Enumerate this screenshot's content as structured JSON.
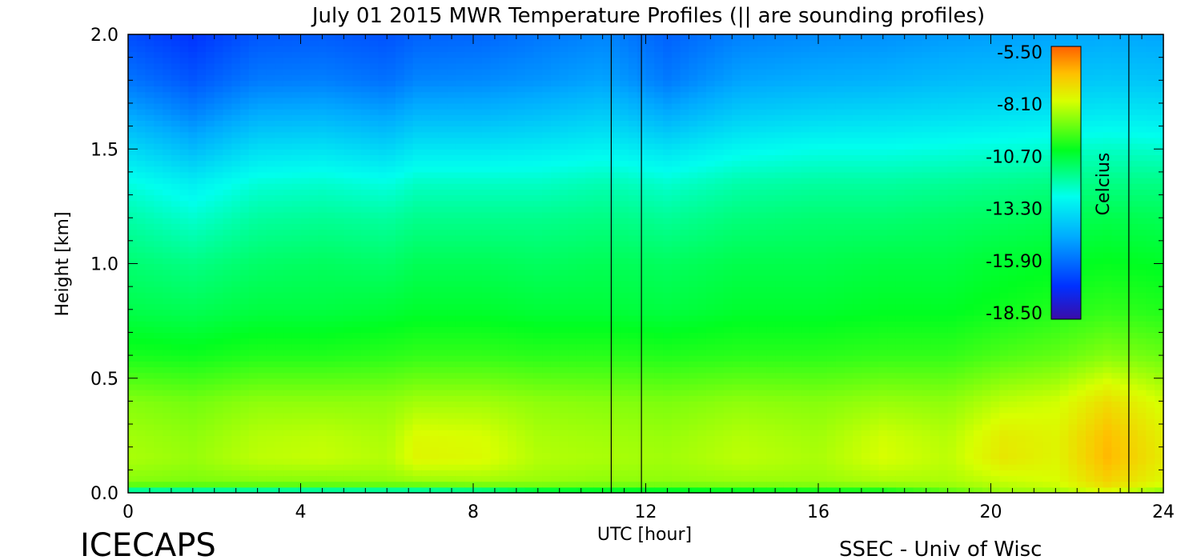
{
  "chart_data": {
    "type": "heatmap",
    "title": "July 01 2015 MWR Temperature Profiles (|| are sounding profiles)",
    "xlabel": "UTC [hour]",
    "ylabel": "Height [km]",
    "xlim": [
      0,
      24
    ],
    "ylim": [
      0,
      2.0
    ],
    "x_ticks": [
      "0",
      "4",
      "8",
      "12",
      "16",
      "20",
      "24"
    ],
    "y_ticks": [
      "0.0",
      "0.5",
      "1.0",
      "1.5",
      "2.0"
    ],
    "colorbar": {
      "label": "Celcius",
      "range": [
        -18.5,
        -5.5
      ],
      "ticks": [
        "-5.50",
        "-8.10",
        "-10.70",
        "-13.30",
        "-15.90",
        "-18.50"
      ]
    },
    "sounding_profiles_utc": [
      11.2,
      11.9,
      23.2
    ],
    "profile_heights_km": [
      0.0,
      0.02,
      0.05,
      0.15,
      0.25,
      0.4,
      0.6,
      0.8,
      1.0,
      1.2,
      1.35,
      1.5,
      1.65,
      1.8,
      2.0
    ],
    "temperature_profiles_c": [
      {
        "utc": 0.0,
        "temps": [
          -14.5,
          -10.0,
          -9.0,
          -8.6,
          -8.7,
          -9.0,
          -10.2,
          -10.9,
          -11.3,
          -11.9,
          -12.5,
          -13.5,
          -14.6,
          -15.6,
          -16.4
        ]
      },
      {
        "utc": 1.5,
        "temps": [
          -14.5,
          -10.0,
          -9.1,
          -8.8,
          -8.9,
          -9.2,
          -10.3,
          -11.0,
          -11.5,
          -12.3,
          -13.0,
          -14.2,
          -15.3,
          -16.2,
          -16.9
        ]
      },
      {
        "utc": 3.0,
        "temps": [
          -14.5,
          -10.0,
          -9.0,
          -8.4,
          -8.5,
          -8.9,
          -10.1,
          -10.8,
          -11.2,
          -11.8,
          -12.4,
          -13.4,
          -14.5,
          -15.5,
          -16.2
        ]
      },
      {
        "utc": 4.5,
        "temps": [
          -14.5,
          -10.0,
          -9.0,
          -8.3,
          -8.4,
          -8.9,
          -10.1,
          -10.8,
          -11.1,
          -11.7,
          -12.3,
          -13.3,
          -14.4,
          -15.4,
          -16.1
        ]
      },
      {
        "utc": 6.0,
        "temps": [
          -14.5,
          -10.0,
          -8.9,
          -8.5,
          -8.6,
          -8.9,
          -10.0,
          -10.7,
          -11.2,
          -11.8,
          -12.5,
          -13.6,
          -14.7,
          -15.7,
          -16.3
        ]
      },
      {
        "utc": 6.7,
        "temps": [
          -14.5,
          -10.0,
          -8.8,
          -7.9,
          -8.0,
          -8.7,
          -9.9,
          -10.6,
          -11.0,
          -11.6,
          -12.2,
          -13.2,
          -14.3,
          -15.3,
          -16.0
        ]
      },
      {
        "utc": 8.2,
        "temps": [
          -14.0,
          -9.8,
          -8.7,
          -8.0,
          -8.1,
          -8.7,
          -9.9,
          -10.6,
          -11.0,
          -11.6,
          -12.2,
          -13.2,
          -14.3,
          -15.2,
          -15.9
        ]
      },
      {
        "utc": 9.5,
        "temps": [
          -12.5,
          -9.6,
          -8.8,
          -8.5,
          -8.6,
          -8.9,
          -10.0,
          -10.7,
          -11.1,
          -11.6,
          -12.2,
          -13.1,
          -14.1,
          -15.0,
          -15.6
        ]
      },
      {
        "utc": 11.0,
        "temps": [
          -12.0,
          -9.6,
          -8.9,
          -8.6,
          -8.7,
          -9.0,
          -10.0,
          -10.7,
          -11.0,
          -11.5,
          -12.0,
          -12.9,
          -13.8,
          -14.7,
          -15.3
        ]
      },
      {
        "utc": 12.5,
        "temps": [
          -12.0,
          -9.6,
          -8.9,
          -8.7,
          -8.8,
          -9.1,
          -10.1,
          -10.8,
          -11.1,
          -11.7,
          -12.3,
          -13.3,
          -14.5,
          -15.5,
          -16.0
        ]
      },
      {
        "utc": 14.2,
        "temps": [
          -11.8,
          -9.5,
          -8.8,
          -8.4,
          -8.5,
          -8.9,
          -10.0,
          -10.6,
          -10.9,
          -11.4,
          -11.9,
          -12.8,
          -13.8,
          -14.7,
          -15.4
        ]
      },
      {
        "utc": 16.0,
        "temps": [
          -11.5,
          -9.4,
          -8.8,
          -8.6,
          -8.7,
          -9.0,
          -10.0,
          -10.6,
          -10.9,
          -11.3,
          -11.8,
          -12.6,
          -13.6,
          -14.5,
          -15.2
        ]
      },
      {
        "utc": 17.5,
        "temps": [
          -11.5,
          -9.3,
          -8.6,
          -8.1,
          -8.2,
          -8.8,
          -9.9,
          -10.5,
          -10.8,
          -11.3,
          -11.8,
          -12.6,
          -13.5,
          -14.4,
          -15.1
        ]
      },
      {
        "utc": 19.0,
        "temps": [
          -10.0,
          -9.0,
          -8.6,
          -8.4,
          -8.5,
          -8.9,
          -9.9,
          -10.5,
          -10.8,
          -11.2,
          -11.7,
          -12.5,
          -13.4,
          -14.2,
          -14.9
        ]
      },
      {
        "utc": 20.3,
        "temps": [
          -9.0,
          -8.6,
          -8.3,
          -7.6,
          -7.7,
          -8.4,
          -9.6,
          -10.3,
          -10.6,
          -11.1,
          -11.6,
          -12.4,
          -13.3,
          -14.1,
          -14.8
        ]
      },
      {
        "utc": 21.5,
        "temps": [
          -9.0,
          -8.4,
          -8.1,
          -7.9,
          -7.9,
          -8.2,
          -9.4,
          -10.1,
          -10.5,
          -11.0,
          -11.5,
          -12.3,
          -13.2,
          -14.0,
          -14.7
        ]
      },
      {
        "utc": 22.7,
        "temps": [
          -8.5,
          -7.6,
          -7.2,
          -6.7,
          -6.8,
          -7.4,
          -9.0,
          -9.9,
          -10.4,
          -10.9,
          -11.5,
          -12.2,
          -13.1,
          -13.9,
          -14.6
        ]
      },
      {
        "utc": 24.0,
        "temps": [
          -9.5,
          -8.4,
          -8.0,
          -7.7,
          -7.8,
          -8.2,
          -9.3,
          -10.1,
          -10.5,
          -11.0,
          -11.5,
          -12.3,
          -13.2,
          -14.0,
          -14.7
        ]
      }
    ]
  },
  "footer": {
    "left": "ICECAPS",
    "right": "SSEC - Univ of Wisc"
  }
}
